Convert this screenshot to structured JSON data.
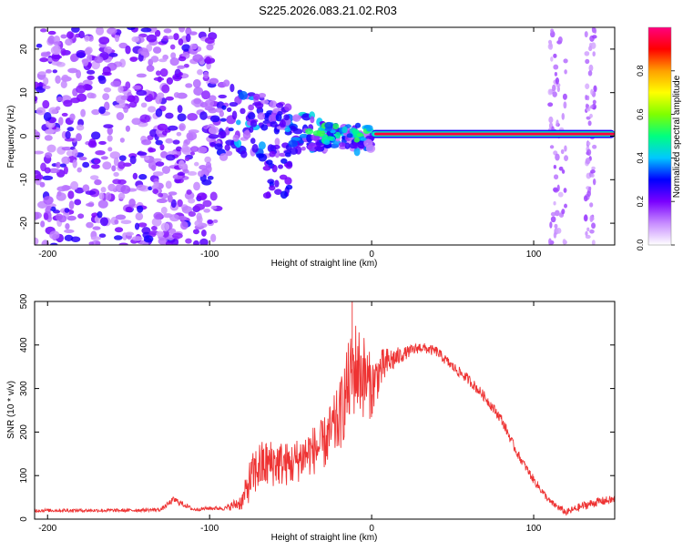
{
  "title": "S225.2026.083.21.02.R03",
  "chart_data": [
    {
      "type": "heatmap",
      "name": "spectrogram",
      "xlabel": "Height of straight line (km)",
      "ylabel": "Frequency (Hz)",
      "xlim": [
        -208,
        150
      ],
      "ylim": [
        -25,
        25
      ],
      "xticks": [
        -200,
        -100,
        0,
        100
      ],
      "yticks": [
        -20,
        -10,
        0,
        10,
        20
      ],
      "colorbar": {
        "label": "Normalized spectral amplitude",
        "ticks": [
          0.0,
          0.2,
          0.4,
          0.6,
          0.8
        ],
        "range": [
          0,
          1
        ],
        "colors": [
          "#ffffff",
          "#c78cff",
          "#7a00ff",
          "#0000ff",
          "#00c8ff",
          "#00ff80",
          "#7fff00",
          "#ffff00",
          "#ffa000",
          "#ff0000",
          "#ff0080"
        ]
      },
      "features": [
        {
          "label": "carrier line",
          "x_start": 0,
          "x_end": 150,
          "frequency": 0.5,
          "amplitude": 0.95
        },
        {
          "label": "scattered noise region",
          "x_start": -208,
          "x_end": -95,
          "frequency_span": [
            -25,
            25
          ],
          "amplitude": 0.35
        },
        {
          "label": "diffraction spread",
          "x_start": -95,
          "x_end": 0,
          "frequency_span": [
            -14,
            10
          ],
          "amplitude": 0.6
        },
        {
          "label": "noise band",
          "x_start": 110,
          "x_end": 120,
          "frequency_span": [
            -25,
            25
          ],
          "amplitude": 0.25
        },
        {
          "label": "noise band",
          "x_start": 132,
          "x_end": 138,
          "frequency_span": [
            -25,
            25
          ],
          "amplitude": 0.25
        }
      ]
    },
    {
      "type": "line",
      "name": "snr",
      "xlabel": "Height of straight line (km)",
      "ylabel": "SNR (10 * v/v)",
      "xlim": [
        -208,
        150
      ],
      "ylim": [
        0,
        500
      ],
      "xticks": [
        -200,
        -100,
        0,
        100
      ],
      "yticks": [
        0,
        100,
        200,
        300,
        400,
        500
      ],
      "color": "#ee3333",
      "series": [
        {
          "name": "SNR",
          "x": [
            -208,
            -190,
            -170,
            -150,
            -130,
            -122,
            -110,
            -100,
            -90,
            -80,
            -75,
            -70,
            -60,
            -50,
            -40,
            -30,
            -20,
            -15,
            -10,
            -5,
            0,
            5,
            10,
            20,
            30,
            40,
            50,
            60,
            70,
            80,
            90,
            100,
            110,
            120,
            130,
            140,
            150
          ],
          "y": [
            20,
            20,
            20,
            20,
            22,
            45,
            22,
            25,
            25,
            40,
            90,
            120,
            130,
            125,
            150,
            170,
            230,
            300,
            350,
            330,
            300,
            340,
            360,
            380,
            395,
            385,
            350,
            320,
            280,
            230,
            150,
            90,
            40,
            15,
            30,
            40,
            45
          ],
          "noise": [
            4,
            4,
            4,
            4,
            4,
            8,
            4,
            4,
            5,
            20,
            50,
            60,
            55,
            50,
            55,
            60,
            80,
            100,
            110,
            100,
            70,
            50,
            35,
            15,
            12,
            12,
            12,
            12,
            12,
            12,
            10,
            10,
            8,
            8,
            10,
            10,
            10
          ]
        }
      ],
      "peaks": [
        {
          "x": -12,
          "y": 500
        }
      ]
    }
  ]
}
